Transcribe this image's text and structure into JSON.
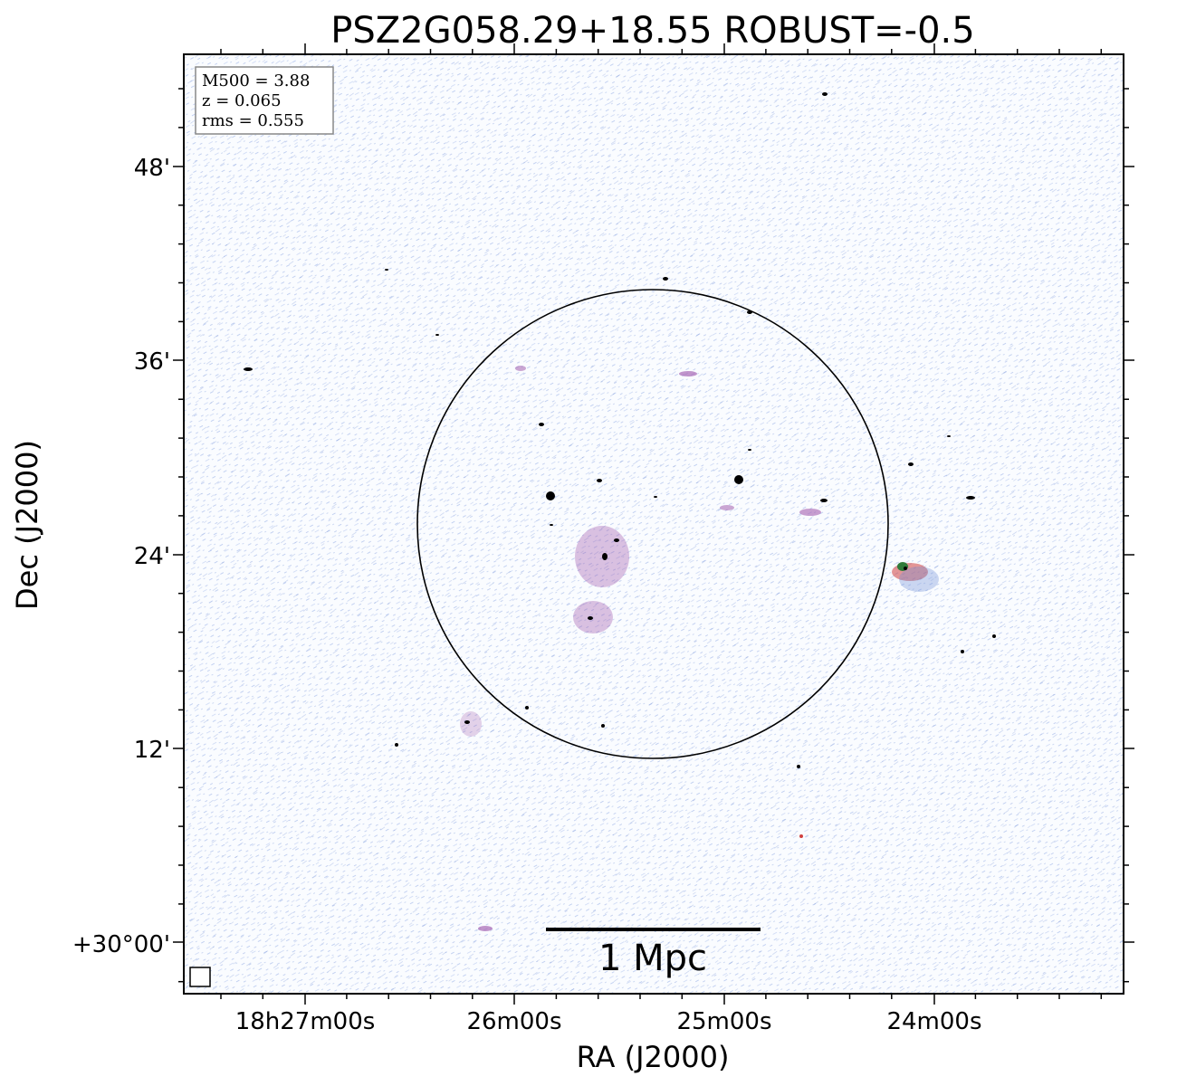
{
  "title": "PSZ2G058.29+18.55 ROBUST=-0.5",
  "xlabel": "RA (J2000)",
  "ylabel": "Dec (J2000)",
  "x_ticks": [
    "18h27m00s",
    "26m00s",
    "25m00s",
    "24m00s"
  ],
  "y_ticks": [
    "48'",
    "36'",
    "24'",
    "12'",
    "+30°00'"
  ],
  "info_box": {
    "mass": "M500 = 3.88",
    "redshift": "z = 0.065",
    "rms": "rms = 0.555"
  },
  "scale_bar": {
    "label": "1 Mpc"
  },
  "colors": {
    "noise": "#6f8fd8",
    "diffuse": "#9a4fa8",
    "source": "#000000",
    "bright_source": "#2f7a3a",
    "hot": "#d0403f"
  }
}
